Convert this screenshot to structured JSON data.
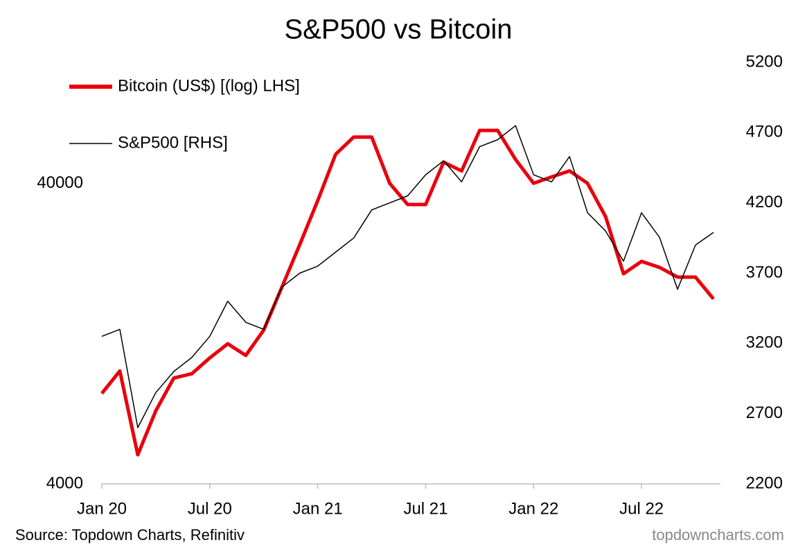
{
  "chart_data": {
    "type": "line",
    "title": "S&P500 vs Bitcoin",
    "source": "Source: Topdown Charts, Refinitiv",
    "watermark": "topdowncharts.com",
    "x": [
      "2020-01",
      "2020-02",
      "2020-03",
      "2020-04",
      "2020-05",
      "2020-06",
      "2020-07",
      "2020-08",
      "2020-09",
      "2020-10",
      "2020-11",
      "2020-12",
      "2021-01",
      "2021-02",
      "2021-03",
      "2021-04",
      "2021-05",
      "2021-06",
      "2021-07",
      "2021-08",
      "2021-09",
      "2021-10",
      "2021-11",
      "2021-12",
      "2022-01",
      "2022-02",
      "2022-03",
      "2022-04",
      "2022-05",
      "2022-06",
      "2022-07",
      "2022-08",
      "2022-09",
      "2022-10",
      "2022-11"
    ],
    "xlim": [
      "2020-01",
      "2022-11"
    ],
    "xticks": [
      {
        "value": "2020-01",
        "label": "Jan 20"
      },
      {
        "value": "2020-07",
        "label": "Jul 20"
      },
      {
        "value": "2021-01",
        "label": "Jan 21"
      },
      {
        "value": "2021-07",
        "label": "Jul 21"
      },
      {
        "value": "2022-01",
        "label": "Jan 22"
      },
      {
        "value": "2022-07",
        "label": "Jul 22"
      }
    ],
    "ylim": [
      4000,
      101000
    ],
    "y_log": true,
    "yticks": [
      4000,
      40000
    ],
    "y2lim": [
      2200,
      5200
    ],
    "y2ticks": [
      2200,
      2700,
      3200,
      3700,
      4200,
      4700,
      5200
    ],
    "legend": "top-left",
    "series": [
      {
        "name": "Bitcoin (US$) [(log) LHS]",
        "color": "#e8000d",
        "axis": "y",
        "values": [
          8000,
          9500,
          5000,
          7000,
          9000,
          9300,
          10500,
          11700,
          10700,
          13000,
          18000,
          25000,
          35000,
          50000,
          57000,
          57000,
          40000,
          34000,
          34000,
          47000,
          44000,
          60000,
          60000,
          48000,
          40000,
          42000,
          44000,
          40000,
          31000,
          20000,
          22000,
          21000,
          19500,
          19500,
          16500
        ]
      },
      {
        "name": "S&P500 [RHS]",
        "color": "#000000",
        "axis": "y2",
        "values": [
          3250,
          3300,
          2600,
          2850,
          3000,
          3100,
          3250,
          3500,
          3350,
          3300,
          3600,
          3700,
          3750,
          3850,
          3950,
          4150,
          4200,
          4250,
          4400,
          4500,
          4350,
          4600,
          4650,
          4750,
          4400,
          4350,
          4530,
          4130,
          4000,
          3785,
          4130,
          3955,
          3585,
          3900,
          3990
        ]
      }
    ]
  }
}
